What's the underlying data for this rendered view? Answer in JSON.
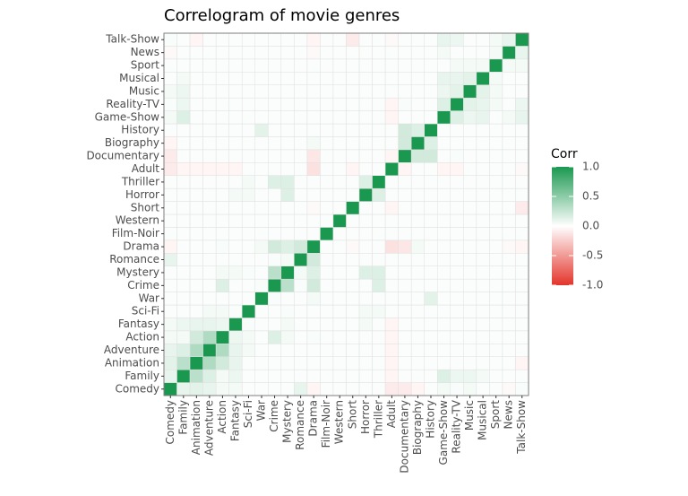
{
  "chart_data": {
    "type": "heatmap",
    "title": "Correlogram of movie genres",
    "categories": [
      "Comedy",
      "Family",
      "Animation",
      "Adventure",
      "Action",
      "Fantasy",
      "Sci-Fi",
      "War",
      "Crime",
      "Mystery",
      "Romance",
      "Drama",
      "Film-Noir",
      "Western",
      "Short",
      "Horror",
      "Thriller",
      "Adult",
      "Documentary",
      "Biography",
      "History",
      "Game-Show",
      "Reality-TV",
      "Music",
      "Musical",
      "Sport",
      "News",
      "Talk-Show"
    ],
    "values": [
      [
        1,
        0.1,
        0.12,
        0.1,
        0.05,
        0.05,
        0.02,
        0.02,
        0.02,
        0.02,
        0.1,
        -0.05,
        0.02,
        0.02,
        0.02,
        0.02,
        0.02,
        -0.1,
        -0.1,
        -0.05,
        0.02,
        0.05,
        0.03,
        0.05,
        0.02,
        0.02,
        -0.03,
        0.03
      ],
      [
        0.1,
        1,
        0.3,
        0.15,
        0.05,
        0.08,
        0.02,
        0.02,
        0.02,
        0.02,
        0.02,
        0.02,
        0.02,
        0.02,
        0.02,
        0.02,
        0.02,
        -0.05,
        0.02,
        0.02,
        0.02,
        0.15,
        0.08,
        0.08,
        0.05,
        0.02,
        0.02,
        0.02
      ],
      [
        0.12,
        0.3,
        1,
        0.35,
        0.2,
        0.1,
        0.02,
        0.02,
        0.02,
        0.02,
        0.02,
        0.02,
        0.02,
        0.02,
        0.02,
        0.02,
        0.02,
        -0.05,
        0.02,
        0.02,
        0.02,
        0.02,
        0.02,
        0.02,
        0.02,
        0.02,
        0.02,
        -0.05
      ],
      [
        0.1,
        0.15,
        0.35,
        1,
        0.35,
        0.1,
        0.05,
        0.02,
        0.02,
        0.02,
        0.02,
        0.02,
        0.02,
        0.02,
        0.02,
        0.02,
        0.02,
        -0.05,
        0.02,
        0.02,
        0.02,
        0.02,
        0.02,
        0.02,
        0.02,
        0.02,
        0.02,
        0.02
      ],
      [
        0.05,
        0.05,
        0.2,
        0.35,
        1,
        0.08,
        0.05,
        0.02,
        0.15,
        0.05,
        0.02,
        0.03,
        0.02,
        0.02,
        0.02,
        0.02,
        0.02,
        -0.05,
        0.02,
        0.02,
        0.02,
        0.02,
        0.02,
        0.02,
        0.02,
        0.02,
        0.02,
        0.02
      ],
      [
        0.05,
        0.08,
        0.1,
        0.1,
        0.08,
        1,
        0.03,
        0.02,
        0.02,
        0.05,
        0.02,
        0.02,
        0.02,
        0.02,
        0.02,
        0.05,
        0.02,
        -0.05,
        0.02,
        0.02,
        0.02,
        0.02,
        0.02,
        0.02,
        0.02,
        0.02,
        0.02,
        0.02
      ],
      [
        0.02,
        0.02,
        0.02,
        0.05,
        0.05,
        0.03,
        1,
        0.02,
        0.02,
        0.03,
        0.02,
        0.02,
        0.02,
        0.02,
        0.02,
        0.05,
        0.05,
        0.02,
        0.02,
        0.02,
        0.02,
        0.02,
        0.02,
        0.02,
        0.02,
        0.02,
        0.02,
        0.02
      ],
      [
        0.02,
        0.02,
        0.02,
        0.02,
        0.02,
        0.02,
        0.02,
        1,
        0.03,
        0.02,
        0.02,
        0.05,
        0.02,
        0.02,
        0.02,
        0.02,
        0.02,
        0.02,
        0.02,
        0.02,
        0.12,
        0.02,
        0.02,
        0.02,
        0.02,
        0.02,
        0.02,
        0.02
      ],
      [
        0.02,
        0.02,
        0.02,
        0.02,
        0.15,
        0.02,
        0.02,
        0.03,
        1,
        0.3,
        0.03,
        0.2,
        0.02,
        0.02,
        0.02,
        0.02,
        0.15,
        0.02,
        0.02,
        0.02,
        0.02,
        0.02,
        0.02,
        0.02,
        0.02,
        0.02,
        0.02,
        0.02
      ],
      [
        0.02,
        0.02,
        0.02,
        0.02,
        0.05,
        0.05,
        0.03,
        0.02,
        0.3,
        1,
        0.05,
        0.15,
        0.02,
        0.02,
        0.02,
        0.15,
        0.15,
        0.02,
        0.02,
        0.02,
        0.02,
        0.02,
        0.02,
        0.02,
        0.02,
        0.02,
        0.02,
        0.02
      ],
      [
        0.1,
        0.02,
        0.02,
        0.02,
        0.02,
        0.02,
        0.02,
        0.02,
        0.03,
        0.05,
        1,
        0.2,
        0.02,
        0.02,
        0.02,
        0.02,
        0.02,
        0.02,
        0.02,
        0.02,
        0.02,
        0.02,
        0.02,
        0.02,
        0.02,
        0.02,
        0.02,
        0.02
      ],
      [
        -0.05,
        0.02,
        0.02,
        0.02,
        0.03,
        0.02,
        0.02,
        0.05,
        0.2,
        0.15,
        0.2,
        1,
        0.02,
        0.02,
        -0.03,
        0.02,
        0.02,
        -0.15,
        -0.12,
        0.05,
        0.02,
        0.02,
        0.02,
        0.02,
        0.02,
        0.02,
        -0.03,
        -0.05
      ],
      [
        0.02,
        0.02,
        0.02,
        0.02,
        0.02,
        0.02,
        0.02,
        0.02,
        0.02,
        0.02,
        0.02,
        0.02,
        1,
        0.02,
        0.02,
        0.02,
        0.02,
        0.02,
        0.02,
        0.02,
        0.02,
        0.02,
        0.02,
        0.02,
        0.02,
        0.02,
        0.02,
        0.02
      ],
      [
        0.02,
        0.02,
        0.02,
        0.02,
        0.02,
        0.02,
        0.02,
        0.02,
        0.02,
        0.02,
        0.02,
        0.02,
        0.02,
        1,
        0.02,
        0.02,
        0.02,
        0.02,
        0.02,
        0.02,
        0.02,
        0.02,
        0.02,
        0.02,
        0.02,
        0.02,
        0.02,
        0.02
      ],
      [
        0.02,
        0.02,
        0.02,
        0.02,
        0.02,
        0.02,
        0.02,
        0.02,
        0.02,
        0.02,
        0.02,
        -0.03,
        0.02,
        0.02,
        1,
        0.02,
        0.02,
        -0.05,
        0.02,
        0.02,
        0.02,
        0.02,
        0.02,
        0.02,
        0.02,
        0.02,
        0.02,
        -0.1
      ],
      [
        0.02,
        0.02,
        0.02,
        0.02,
        0.02,
        0.05,
        0.05,
        0.02,
        0.02,
        0.15,
        0.02,
        0.02,
        0.02,
        0.02,
        0.02,
        1,
        0.15,
        0.02,
        0.02,
        0.02,
        0.02,
        0.02,
        0.02,
        0.02,
        0.02,
        0.02,
        0.02,
        0.02
      ],
      [
        0.02,
        0.02,
        0.02,
        0.02,
        0.02,
        0.02,
        0.05,
        0.02,
        0.15,
        0.15,
        0.02,
        0.02,
        0.02,
        0.02,
        0.02,
        0.15,
        1,
        0.02,
        0.02,
        0.02,
        0.02,
        0.02,
        0.02,
        0.02,
        0.02,
        0.02,
        0.02,
        0.02
      ],
      [
        -0.1,
        -0.05,
        -0.05,
        -0.05,
        -0.05,
        -0.05,
        0.02,
        0.02,
        0.02,
        0.02,
        0.02,
        -0.15,
        0.02,
        0.02,
        -0.05,
        0.02,
        0.02,
        1,
        -0.05,
        0.02,
        0.02,
        -0.05,
        -0.05,
        0.02,
        0.02,
        0.02,
        0.02,
        -0.03
      ],
      [
        -0.1,
        0.02,
        0.02,
        0.02,
        0.02,
        0.02,
        0.02,
        0.02,
        0.02,
        0.02,
        0.02,
        -0.12,
        0.02,
        0.02,
        0.02,
        0.02,
        0.02,
        -0.05,
        1,
        0.2,
        0.2,
        0.02,
        0.03,
        0.02,
        0.02,
        0.02,
        0.02,
        0.02
      ],
      [
        -0.05,
        0.02,
        0.02,
        0.02,
        0.02,
        0.02,
        0.02,
        0.02,
        0.02,
        0.02,
        0.02,
        0.05,
        0.02,
        0.02,
        0.02,
        0.02,
        0.02,
        0.02,
        0.2,
        1,
        0.15,
        0.02,
        0.02,
        0.02,
        0.02,
        0.02,
        0.02,
        0.02
      ],
      [
        0.02,
        0.02,
        0.02,
        0.02,
        0.02,
        0.02,
        0.02,
        0.12,
        0.02,
        0.02,
        0.02,
        0.02,
        0.02,
        0.02,
        0.02,
        0.02,
        0.02,
        0.02,
        0.2,
        0.15,
        1,
        0.02,
        0.02,
        0.02,
        0.02,
        0.02,
        0.02,
        0.02
      ],
      [
        0.05,
        0.15,
        0.02,
        0.02,
        0.02,
        0.02,
        0.02,
        0.02,
        0.02,
        0.02,
        0.02,
        0.02,
        0.02,
        0.02,
        0.02,
        0.02,
        0.02,
        -0.05,
        0.02,
        0.02,
        0.02,
        1,
        0.15,
        0.08,
        0.1,
        0.02,
        0.05,
        0.1
      ],
      [
        0.03,
        0.08,
        0.02,
        0.02,
        0.02,
        0.02,
        0.02,
        0.02,
        0.02,
        0.02,
        0.02,
        0.02,
        0.02,
        0.02,
        0.02,
        0.02,
        0.02,
        -0.05,
        0.03,
        0.02,
        0.02,
        0.15,
        1,
        0.12,
        0.1,
        0.05,
        0.02,
        0.08
      ],
      [
        0.05,
        0.08,
        0.02,
        0.02,
        0.02,
        0.02,
        0.02,
        0.02,
        0.02,
        0.02,
        0.02,
        0.02,
        0.02,
        0.02,
        0.02,
        0.02,
        0.02,
        0.02,
        0.02,
        0.02,
        0.02,
        0.08,
        0.12,
        1,
        0.12,
        0.05,
        0.02,
        0.02
      ],
      [
        0.02,
        0.05,
        0.02,
        0.02,
        0.02,
        0.02,
        0.02,
        0.02,
        0.02,
        0.02,
        0.02,
        0.02,
        0.02,
        0.02,
        0.02,
        0.02,
        0.02,
        0.02,
        0.02,
        0.02,
        0.02,
        0.1,
        0.1,
        0.12,
        1,
        0.05,
        0.02,
        0.02
      ],
      [
        0.02,
        0.02,
        0.02,
        0.02,
        0.02,
        0.02,
        0.02,
        0.02,
        0.02,
        0.02,
        0.02,
        0.02,
        0.02,
        0.02,
        0.02,
        0.02,
        0.02,
        0.02,
        0.02,
        0.02,
        0.02,
        0.02,
        0.05,
        0.05,
        0.05,
        1,
        0.05,
        0.05
      ],
      [
        -0.03,
        0.02,
        0.02,
        0.02,
        0.02,
        0.02,
        0.02,
        0.02,
        0.02,
        0.02,
        0.02,
        -0.03,
        0.02,
        0.02,
        0.02,
        0.02,
        0.02,
        0.02,
        0.02,
        0.02,
        0.02,
        0.05,
        0.02,
        0.02,
        0.02,
        0.05,
        1,
        0.1
      ],
      [
        0.03,
        0.02,
        -0.05,
        0.02,
        0.02,
        0.02,
        0.02,
        0.02,
        0.02,
        0.02,
        0.02,
        -0.05,
        0.02,
        0.02,
        -0.1,
        0.02,
        0.02,
        -0.03,
        0.02,
        0.02,
        0.02,
        0.1,
        0.08,
        0.02,
        0.02,
        0.05,
        0.1,
        1
      ]
    ],
    "legend_title": "Corr",
    "clim": [
      -1,
      1
    ],
    "colors": {
      "low": "#e3342b",
      "mid": "#ffffff",
      "high": "#1a9850"
    },
    "colorbar_ticks": [
      {
        "value": 1,
        "label": "1.0"
      },
      {
        "value": 0.5,
        "label": "0.5"
      },
      {
        "value": 0,
        "label": "0.0"
      },
      {
        "value": -0.5,
        "label": "-0.5"
      },
      {
        "value": -1,
        "label": "-1.0"
      }
    ]
  }
}
